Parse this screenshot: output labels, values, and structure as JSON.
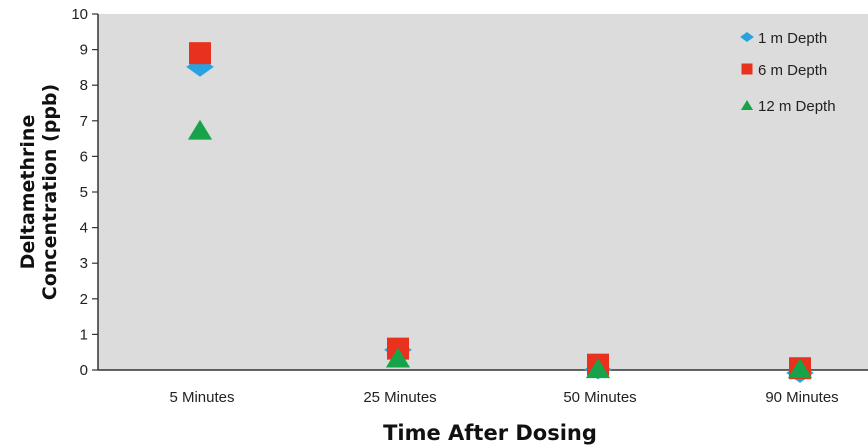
{
  "chart_data": {
    "type": "scatter",
    "title": "",
    "xlabel": "Time After Dosing",
    "ylabel_lines": [
      "Deltamethrine",
      "Concentration (ppb)"
    ],
    "categories": [
      "5 Minutes",
      "25 Minutes",
      "50 Minutes",
      "90 Minutes"
    ],
    "ylim": [
      0,
      10
    ],
    "yticks": [
      "0",
      "1",
      "2",
      "3",
      "4",
      "5",
      "6",
      "7",
      "8",
      "9",
      "10"
    ],
    "grid": false,
    "legend_position": "top-right",
    "series": [
      {
        "name": "1 m Depth",
        "marker": "diamond",
        "color": "#29a3e0",
        "values": [
          8.6,
          0.65,
          0.1,
          0.0
        ]
      },
      {
        "name": "6 m Depth",
        "marker": "square",
        "color": "#e8321e",
        "values": [
          8.9,
          0.6,
          0.15,
          0.05
        ]
      },
      {
        "name": "12 m Depth",
        "marker": "triangle",
        "color": "#17a34a",
        "values": [
          6.75,
          0.35,
          0.05,
          0.05
        ]
      }
    ],
    "plot_background": "#dcdcdc"
  }
}
